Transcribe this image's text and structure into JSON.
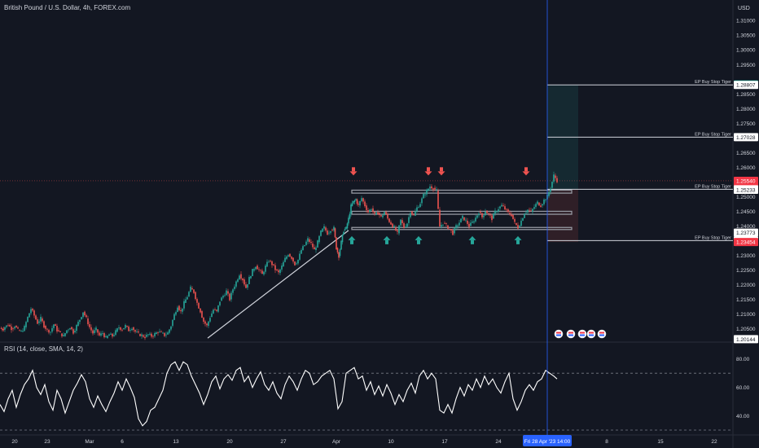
{
  "header": {
    "title": "British Pound / U.S. Dollar, 4h, FOREX.com",
    "currency": "USD"
  },
  "rsi": {
    "title": "RSI (14, close, SMA, 14, 2)",
    "ticks": [
      "80.00",
      "60.00",
      "40.00"
    ]
  },
  "colors": {
    "background": "#131722",
    "up": "#26a69a",
    "down": "#ef5350",
    "text": "#d1d4dc",
    "grid": "#2a2e39",
    "cursor_line": "#2962ff",
    "price_tag_bg": "#f23645",
    "target_tag_bg": "#089981"
  },
  "chart_data": {
    "type": "candlestick",
    "symbol": "GBPUSD",
    "interval": "4h",
    "yaxis": {
      "ticks": [
        "1.31000",
        "1.30500",
        "1.30000",
        "1.29500",
        "1.28500",
        "1.28000",
        "1.27500",
        "1.26500",
        "1.26000",
        "1.25000",
        "1.24500",
        "1.24000",
        "1.23500",
        "1.23000",
        "1.22500",
        "1.22000",
        "1.21500",
        "1.21000",
        "1.20500"
      ],
      "range": [
        1.201,
        1.312
      ]
    },
    "xaxis": {
      "ticks": [
        "20",
        "23",
        "Mar",
        "6",
        "13",
        "20",
        "27",
        "Apr",
        "10",
        "17",
        "24",
        "8",
        "15",
        "22"
      ],
      "cursor_label": "Fri 28 Apr '23  14:00"
    },
    "price_labels": [
      {
        "value": "1.28824",
        "kind": "target"
      },
      {
        "value": "1.28807",
        "kind": "level"
      },
      {
        "value": "1.27028",
        "kind": "level"
      },
      {
        "value": "1.25540",
        "kind": "current"
      },
      {
        "value": "03:06:15",
        "kind": "countdown"
      },
      {
        "value": "1.25250",
        "kind": "level"
      },
      {
        "value": "1.25233",
        "kind": "level"
      },
      {
        "value": "1.23773",
        "kind": "level"
      },
      {
        "value": "1.23504",
        "kind": "level"
      },
      {
        "value": "1.23454",
        "kind": "stop"
      },
      {
        "value": "1.20144",
        "kind": "level"
      }
    ],
    "horizontal_lines": [
      {
        "label": "EP Buy Stop Tiger",
        "price": 1.28807
      },
      {
        "label": "EP Buy Stop Tiger",
        "price": 1.27028
      },
      {
        "label": "EP Buy Stop Tiger",
        "price": 1.2525
      },
      {
        "label": "EP Buy Stop Tiger",
        "price": 1.23504
      }
    ],
    "close_path": [
      [
        0,
        1.2052
      ],
      [
        3,
        1.2048
      ],
      [
        6,
        1.2056
      ],
      [
        10,
        1.2063
      ],
      [
        14,
        1.2051
      ],
      [
        18,
        1.206
      ],
      [
        22,
        1.2045
      ],
      [
        26,
        1.204
      ],
      [
        30,
        1.2055
      ],
      [
        34,
        1.2089
      ],
      [
        38,
        1.2118
      ],
      [
        42,
        1.2095
      ],
      [
        46,
        1.207
      ],
      [
        50,
        1.2085
      ],
      [
        54,
        1.206
      ],
      [
        58,
        1.2046
      ],
      [
        62,
        1.204
      ],
      [
        66,
        1.2065
      ],
      [
        70,
        1.2045
      ],
      [
        74,
        1.2034
      ],
      [
        78,
        1.2025
      ],
      [
        82,
        1.2045
      ],
      [
        86,
        1.2056
      ],
      [
        90,
        1.2038
      ],
      [
        94,
        1.206
      ],
      [
        98,
        1.2082
      ],
      [
        102,
        1.2108
      ],
      [
        106,
        1.2085
      ],
      [
        110,
        1.2055
      ],
      [
        114,
        1.2035
      ],
      [
        118,
        1.2048
      ],
      [
        122,
        1.2027
      ],
      [
        126,
        1.2035
      ],
      [
        130,
        1.2018
      ],
      [
        134,
        1.203
      ],
      [
        138,
        1.2025
      ],
      [
        142,
        1.204
      ],
      [
        146,
        1.2055
      ],
      [
        150,
        1.2048
      ],
      [
        154,
        1.206
      ],
      [
        158,
        1.2045
      ],
      [
        162,
        1.2055
      ],
      [
        166,
        1.204
      ],
      [
        170,
        1.2032
      ],
      [
        174,
        1.2028
      ],
      [
        178,
        1.2022
      ],
      [
        182,
        1.203
      ],
      [
        186,
        1.2025
      ],
      [
        190,
        1.2032
      ],
      [
        194,
        1.204
      ],
      [
        198,
        1.2035
      ],
      [
        202,
        1.2028
      ],
      [
        206,
        1.2036
      ],
      [
        210,
        1.206
      ],
      [
        214,
        1.2098
      ],
      [
        218,
        1.2128
      ],
      [
        222,
        1.2108
      ],
      [
        226,
        1.2138
      ],
      [
        230,
        1.216
      ],
      [
        234,
        1.2188
      ],
      [
        238,
        1.2175
      ],
      [
        242,
        1.2138
      ],
      [
        246,
        1.211
      ],
      [
        250,
        1.2075
      ],
      [
        254,
        1.206
      ],
      [
        258,
        1.209
      ],
      [
        262,
        1.2115
      ],
      [
        266,
        1.2108
      ],
      [
        270,
        1.2145
      ],
      [
        274,
        1.2162
      ],
      [
        278,
        1.2178
      ],
      [
        282,
        1.215
      ],
      [
        286,
        1.2185
      ],
      [
        290,
        1.221
      ],
      [
        294,
        1.2236
      ],
      [
        298,
        1.2218
      ],
      [
        302,
        1.219
      ],
      [
        306,
        1.2222
      ],
      [
        310,
        1.2248
      ],
      [
        314,
        1.2265
      ],
      [
        318,
        1.225
      ],
      [
        322,
        1.2235
      ],
      [
        326,
        1.2262
      ],
      [
        330,
        1.2282
      ],
      [
        334,
        1.227
      ],
      [
        338,
        1.2252
      ],
      [
        342,
        1.224
      ],
      [
        346,
        1.2262
      ],
      [
        350,
        1.2288
      ],
      [
        354,
        1.2305
      ],
      [
        358,
        1.2292
      ],
      [
        362,
        1.227
      ],
      [
        366,
        1.2285
      ],
      [
        370,
        1.2318
      ],
      [
        374,
        1.2335
      ],
      [
        378,
        1.2355
      ],
      [
        382,
        1.234
      ],
      [
        386,
        1.2318
      ],
      [
        390,
        1.2345
      ],
      [
        394,
        1.238
      ],
      [
        398,
        1.2395
      ],
      [
        402,
        1.2375
      ],
      [
        406,
        1.2388
      ],
      [
        410,
        1.2392
      ],
      [
        413,
        1.2325
      ],
      [
        416,
        1.2298
      ],
      [
        419,
        1.2345
      ],
      [
        422,
        1.2385
      ],
      [
        425,
        1.2392
      ],
      [
        428,
        1.2425
      ],
      [
        431,
        1.2468
      ],
      [
        434,
        1.2482
      ],
      [
        437,
        1.2491
      ],
      [
        440,
        1.247
      ],
      [
        444,
        1.2495
      ],
      [
        448,
        1.247
      ],
      [
        452,
        1.2448
      ],
      [
        456,
        1.246
      ],
      [
        460,
        1.2438
      ],
      [
        464,
        1.2445
      ],
      [
        468,
        1.243
      ],
      [
        472,
        1.2448
      ],
      [
        476,
        1.2425
      ],
      [
        480,
        1.2408
      ],
      [
        484,
        1.2395
      ],
      [
        488,
        1.2375
      ],
      [
        492,
        1.242
      ],
      [
        496,
        1.2395
      ],
      [
        500,
        1.241
      ],
      [
        504,
        1.245
      ],
      [
        508,
        1.2435
      ],
      [
        512,
        1.2462
      ],
      [
        516,
        1.2478
      ],
      [
        520,
        1.2505
      ],
      [
        524,
        1.252
      ],
      [
        528,
        1.2535
      ],
      [
        532,
        1.253
      ],
      [
        536,
        1.252
      ],
      [
        538,
        1.2455
      ],
      [
        540,
        1.2398
      ],
      [
        544,
        1.241
      ],
      [
        548,
        1.2402
      ],
      [
        552,
        1.239
      ],
      [
        556,
        1.2375
      ],
      [
        560,
        1.2398
      ],
      [
        564,
        1.2412
      ],
      [
        568,
        1.243
      ],
      [
        572,
        1.2418
      ],
      [
        576,
        1.24
      ],
      [
        580,
        1.2412
      ],
      [
        584,
        1.2428
      ],
      [
        588,
        1.2448
      ],
      [
        592,
        1.243
      ],
      [
        596,
        1.2452
      ],
      [
        600,
        1.244
      ],
      [
        604,
        1.2425
      ],
      [
        608,
        1.2448
      ],
      [
        612,
        1.246
      ],
      [
        616,
        1.247
      ],
      [
        620,
        1.2458
      ],
      [
        624,
        1.2445
      ],
      [
        628,
        1.2438
      ],
      [
        632,
        1.241
      ],
      [
        636,
        1.2395
      ],
      [
        640,
        1.2418
      ],
      [
        644,
        1.2445
      ],
      [
        648,
        1.2455
      ],
      [
        652,
        1.2448
      ],
      [
        656,
        1.2465
      ],
      [
        660,
        1.248
      ],
      [
        664,
        1.247
      ],
      [
        668,
        1.2488
      ],
      [
        672,
        1.2502
      ],
      [
        676,
        1.253
      ],
      [
        680,
        1.2572
      ],
      [
        684,
        1.2555
      ]
    ],
    "rsi_path": [
      [
        0,
        48
      ],
      [
        5,
        43
      ],
      [
        10,
        52
      ],
      [
        15,
        58
      ],
      [
        20,
        46
      ],
      [
        25,
        55
      ],
      [
        30,
        62
      ],
      [
        35,
        66
      ],
      [
        40,
        72
      ],
      [
        45,
        60
      ],
      [
        50,
        55
      ],
      [
        55,
        62
      ],
      [
        60,
        50
      ],
      [
        65,
        44
      ],
      [
        70,
        58
      ],
      [
        75,
        52
      ],
      [
        80,
        42
      ],
      [
        85,
        50
      ],
      [
        90,
        58
      ],
      [
        95,
        63
      ],
      [
        100,
        69
      ],
      [
        105,
        64
      ],
      [
        110,
        52
      ],
      [
        115,
        46
      ],
      [
        120,
        54
      ],
      [
        125,
        48
      ],
      [
        130,
        43
      ],
      [
        135,
        50
      ],
      [
        140,
        56
      ],
      [
        145,
        64
      ],
      [
        150,
        58
      ],
      [
        155,
        66
      ],
      [
        160,
        60
      ],
      [
        165,
        53
      ],
      [
        170,
        38
      ],
      [
        175,
        33
      ],
      [
        180,
        36
      ],
      [
        185,
        44
      ],
      [
        190,
        46
      ],
      [
        195,
        52
      ],
      [
        200,
        58
      ],
      [
        205,
        70
      ],
      [
        210,
        76
      ],
      [
        215,
        78
      ],
      [
        220,
        72
      ],
      [
        225,
        78
      ],
      [
        230,
        76
      ],
      [
        235,
        68
      ],
      [
        240,
        62
      ],
      [
        245,
        56
      ],
      [
        250,
        48
      ],
      [
        255,
        55
      ],
      [
        260,
        64
      ],
      [
        265,
        68
      ],
      [
        270,
        59
      ],
      [
        275,
        66
      ],
      [
        280,
        69
      ],
      [
        285,
        65
      ],
      [
        290,
        72
      ],
      [
        295,
        74
      ],
      [
        300,
        64
      ],
      [
        305,
        68
      ],
      [
        310,
        60
      ],
      [
        315,
        66
      ],
      [
        320,
        71
      ],
      [
        325,
        62
      ],
      [
        330,
        58
      ],
      [
        335,
        64
      ],
      [
        340,
        56
      ],
      [
        345,
        52
      ],
      [
        350,
        62
      ],
      [
        355,
        68
      ],
      [
        360,
        64
      ],
      [
        365,
        58
      ],
      [
        370,
        66
      ],
      [
        375,
        72
      ],
      [
        380,
        70
      ],
      [
        385,
        62
      ],
      [
        390,
        64
      ],
      [
        395,
        68
      ],
      [
        400,
        70
      ],
      [
        405,
        72
      ],
      [
        410,
        66
      ],
      [
        415,
        45
      ],
      [
        420,
        50
      ],
      [
        425,
        70
      ],
      [
        430,
        72
      ],
      [
        435,
        74
      ],
      [
        440,
        66
      ],
      [
        445,
        68
      ],
      [
        450,
        58
      ],
      [
        455,
        64
      ],
      [
        460,
        55
      ],
      [
        465,
        61
      ],
      [
        470,
        54
      ],
      [
        475,
        62
      ],
      [
        480,
        56
      ],
      [
        485,
        48
      ],
      [
        490,
        55
      ],
      [
        495,
        50
      ],
      [
        500,
        58
      ],
      [
        505,
        63
      ],
      [
        510,
        56
      ],
      [
        515,
        68
      ],
      [
        520,
        72
      ],
      [
        525,
        66
      ],
      [
        530,
        70
      ],
      [
        535,
        66
      ],
      [
        540,
        44
      ],
      [
        545,
        42
      ],
      [
        550,
        48
      ],
      [
        555,
        42
      ],
      [
        560,
        52
      ],
      [
        565,
        60
      ],
      [
        570,
        54
      ],
      [
        575,
        62
      ],
      [
        580,
        58
      ],
      [
        585,
        66
      ],
      [
        590,
        60
      ],
      [
        595,
        68
      ],
      [
        600,
        62
      ],
      [
        605,
        66
      ],
      [
        610,
        60
      ],
      [
        615,
        56
      ],
      [
        620,
        64
      ],
      [
        625,
        70
      ],
      [
        630,
        52
      ],
      [
        635,
        44
      ],
      [
        640,
        50
      ],
      [
        645,
        58
      ],
      [
        650,
        62
      ],
      [
        655,
        58
      ],
      [
        660,
        64
      ],
      [
        665,
        66
      ],
      [
        670,
        72
      ],
      [
        675,
        70
      ],
      [
        680,
        68
      ],
      [
        684,
        66
      ]
    ]
  }
}
